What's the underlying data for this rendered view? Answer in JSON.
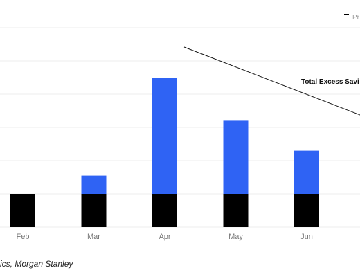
{
  "chart_data": {
    "type": "bar",
    "stacked": true,
    "categories": [
      "Feb",
      "Mar",
      "Apr",
      "May",
      "Jun"
    ],
    "series": [
      {
        "color": "#000000",
        "values": [
          1.0,
          1.0,
          1.0,
          1.0,
          1.0
        ]
      },
      {
        "color": "#2f63f4",
        "values": [
          0.0,
          0.55,
          3.5,
          2.2,
          1.3
        ]
      }
    ],
    "ylim": [
      0,
      6
    ],
    "grid": true,
    "legend": {
      "position": "top-right",
      "entries": [
        {
          "label": "Pr",
          "color": "#000000"
        }
      ]
    },
    "annotation": {
      "text": "Total Excess Savi"
    }
  },
  "source_text": "ics, Morgan Stanley"
}
